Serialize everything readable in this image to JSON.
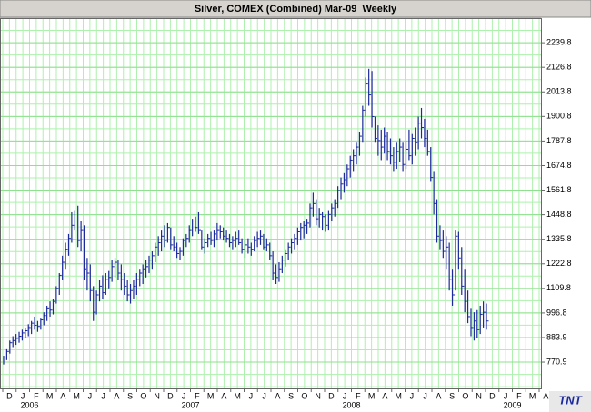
{
  "chart_data": {
    "type": "ohlc",
    "title": "Silver, COMEX (Combined) Mar-09  Weekly",
    "categories": [
      "D",
      "J",
      "F",
      "M",
      "A",
      "M",
      "J",
      "J",
      "A",
      "S",
      "O",
      "N",
      "D",
      "J",
      "F",
      "M",
      "A",
      "M",
      "J",
      "J",
      "A",
      "S",
      "O",
      "N",
      "D",
      "J",
      "F",
      "M",
      "A",
      "M",
      "J",
      "J",
      "A",
      "S",
      "O",
      "N",
      "D",
      "J",
      "F",
      "M",
      "A"
    ],
    "years": [
      "2006",
      "2007",
      "2008",
      "2009"
    ],
    "logo": "TNT",
    "color": "#1c2a9c",
    "ylim": [
      650,
      2353
    ],
    "yticks": [
      770.9,
      883.9,
      996.8,
      1109.8,
      1222.8,
      1335.8,
      1448.8,
      1561.8,
      1674.8,
      1787.8,
      1900.8,
      2013.8,
      2126.8,
      2239.8
    ],
    "grid": true,
    "high": [
      800,
      830,
      870,
      890,
      900,
      910,
      920,
      930,
      945,
      960,
      980,
      960,
      975,
      1000,
      1030,
      1050,
      1060,
      1120,
      1180,
      1260,
      1320,
      1360,
      1460,
      1470,
      1490,
      1420,
      1400,
      1250,
      1220,
      1120,
      1100,
      1150,
      1170,
      1180,
      1190,
      1240,
      1250,
      1240,
      1220,
      1180,
      1150,
      1130,
      1150,
      1180,
      1200,
      1220,
      1240,
      1260,
      1280,
      1320,
      1350,
      1380,
      1400,
      1410,
      1390,
      1350,
      1320,
      1300,
      1340,
      1360,
      1400,
      1430,
      1440,
      1460,
      1380,
      1340,
      1360,
      1370,
      1380,
      1410,
      1400,
      1390,
      1380,
      1360,
      1350,
      1370,
      1380,
      1340,
      1330,
      1340,
      1320,
      1350,
      1370,
      1380,
      1360,
      1340,
      1320,
      1280,
      1220,
      1230,
      1260,
      1290,
      1320,
      1340,
      1360,
      1390,
      1410,
      1420,
      1430,
      1500,
      1550,
      1520,
      1480,
      1460,
      1450,
      1470,
      1500,
      1520,
      1580,
      1620,
      1640,
      1680,
      1720,
      1750,
      1780,
      1830,
      1950,
      2080,
      2120,
      2110,
      1900,
      1860,
      1840,
      1850,
      1830,
      1800,
      1760,
      1780,
      1800,
      1780,
      1790,
      1840,
      1820,
      1850,
      1900,
      1940,
      1890,
      1840,
      1760,
      1650,
      1520,
      1400,
      1380,
      1350,
      1320,
      1200,
      1380,
      1370,
      1300,
      1200,
      1100,
      1020,
      1000,
      1010,
      1030,
      1050,
      1040
    ],
    "low": [
      760,
      780,
      810,
      840,
      850,
      860,
      870,
      880,
      890,
      900,
      920,
      910,
      920,
      940,
      960,
      980,
      990,
      1040,
      1080,
      1150,
      1200,
      1260,
      1320,
      1380,
      1300,
      1280,
      1150,
      1100,
      1050,
      960,
      990,
      1050,
      1060,
      1080,
      1110,
      1140,
      1160,
      1150,
      1100,
      1080,
      1050,
      1040,
      1060,
      1080,
      1120,
      1130,
      1160,
      1180,
      1200,
      1230,
      1260,
      1280,
      1300,
      1320,
      1290,
      1280,
      1250,
      1240,
      1260,
      1300,
      1320,
      1350,
      1370,
      1360,
      1290,
      1270,
      1300,
      1310,
      1300,
      1330,
      1340,
      1330,
      1320,
      1300,
      1290,
      1300,
      1310,
      1270,
      1250,
      1270,
      1260,
      1280,
      1300,
      1310,
      1290,
      1280,
      1240,
      1150,
      1130,
      1140,
      1180,
      1210,
      1240,
      1270,
      1290,
      1310,
      1330,
      1340,
      1360,
      1390,
      1440,
      1400,
      1390,
      1380,
      1370,
      1380,
      1420,
      1440,
      1480,
      1520,
      1550,
      1580,
      1620,
      1650,
      1680,
      1720,
      1780,
      1900,
      1950,
      1850,
      1780,
      1720,
      1700,
      1730,
      1700,
      1680,
      1650,
      1660,
      1690,
      1650,
      1660,
      1700,
      1680,
      1720,
      1750,
      1800,
      1760,
      1720,
      1600,
      1450,
      1320,
      1290,
      1250,
      1200,
      1100,
      1030,
      1100,
      1200,
      1080,
      1000,
      950,
      890,
      870,
      880,
      900,
      930,
      920
    ],
    "close": [
      790,
      820,
      860,
      870,
      880,
      890,
      905,
      915,
      930,
      950,
      940,
      935,
      965,
      985,
      1020,
      1010,
      1050,
      1110,
      1170,
      1230,
      1290,
      1340,
      1400,
      1420,
      1330,
      1380,
      1200,
      1180,
      1100,
      1000,
      1080,
      1120,
      1090,
      1150,
      1160,
      1210,
      1230,
      1180,
      1150,
      1120,
      1080,
      1100,
      1120,
      1150,
      1180,
      1200,
      1210,
      1240,
      1260,
      1300,
      1320,
      1350,
      1330,
      1390,
      1310,
      1300,
      1270,
      1280,
      1330,
      1340,
      1380,
      1420,
      1390,
      1380,
      1300,
      1320,
      1340,
      1330,
      1360,
      1380,
      1370,
      1350,
      1340,
      1320,
      1330,
      1340,
      1320,
      1290,
      1310,
      1300,
      1290,
      1330,
      1340,
      1350,
      1300,
      1310,
      1260,
      1180,
      1160,
      1200,
      1240,
      1270,
      1300,
      1320,
      1340,
      1370,
      1390,
      1400,
      1410,
      1480,
      1500,
      1430,
      1450,
      1440,
      1400,
      1450,
      1480,
      1500,
      1560,
      1590,
      1610,
      1660,
      1700,
      1720,
      1760,
      1810,
      1930,
      2050,
      2000,
      1900,
      1800,
      1790,
      1760,
      1810,
      1740,
      1720,
      1690,
      1740,
      1760,
      1680,
      1750,
      1720,
      1800,
      1780,
      1870,
      1850,
      1800,
      1740,
      1620,
      1500,
      1350,
      1330,
      1280,
      1300,
      1150,
      1080,
      1350,
      1250,
      1120,
      1050,
      980,
      930,
      960,
      920,
      990,
      1000,
      960
    ]
  }
}
